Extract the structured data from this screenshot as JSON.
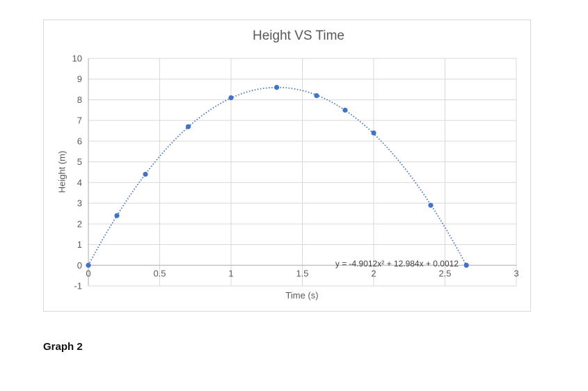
{
  "page": {
    "caption": "Graph 2"
  },
  "chart_data": {
    "type": "scatter",
    "title": "Height VS Time",
    "xlabel": "Time (s)",
    "ylabel": "Height (m)",
    "xlim": [
      0,
      3
    ],
    "ylim": [
      -1,
      10
    ],
    "x_ticks": [
      "0",
      "0.5",
      "1",
      "1.5",
      "2",
      "2.5",
      "3"
    ],
    "y_ticks": [
      "10",
      "9",
      "8",
      "7",
      "6",
      "5",
      "4",
      "3",
      "2",
      "1",
      "0",
      "-1"
    ],
    "grid": true,
    "legend": "none",
    "points": [
      {
        "x": 0,
        "y": 0
      },
      {
        "x": 0.2,
        "y": 2.4
      },
      {
        "x": 0.4,
        "y": 4.4
      },
      {
        "x": 0.7,
        "y": 6.7
      },
      {
        "x": 1.0,
        "y": 8.1
      },
      {
        "x": 1.32,
        "y": 8.6
      },
      {
        "x": 1.6,
        "y": 8.2
      },
      {
        "x": 1.8,
        "y": 7.5
      },
      {
        "x": 2.0,
        "y": 6.4
      },
      {
        "x": 2.4,
        "y": 2.9
      },
      {
        "x": 2.65,
        "y": 0
      }
    ],
    "trendline": {
      "style": "dotted",
      "equation_label": "y = -4.9012x² + 12.984x + 0.0012",
      "coefficients": {
        "a": -4.9012,
        "b": 12.984,
        "c": 0.0012
      },
      "x_range": [
        0,
        2.65
      ]
    },
    "colors": {
      "marker": "#4472c4",
      "trendline": "#4472c4",
      "grid": "#d9d9d9",
      "axis": "#ababab",
      "text": "#595959",
      "equation_text": "#3f3f3f",
      "frame_border": "#d9d9d9"
    }
  }
}
